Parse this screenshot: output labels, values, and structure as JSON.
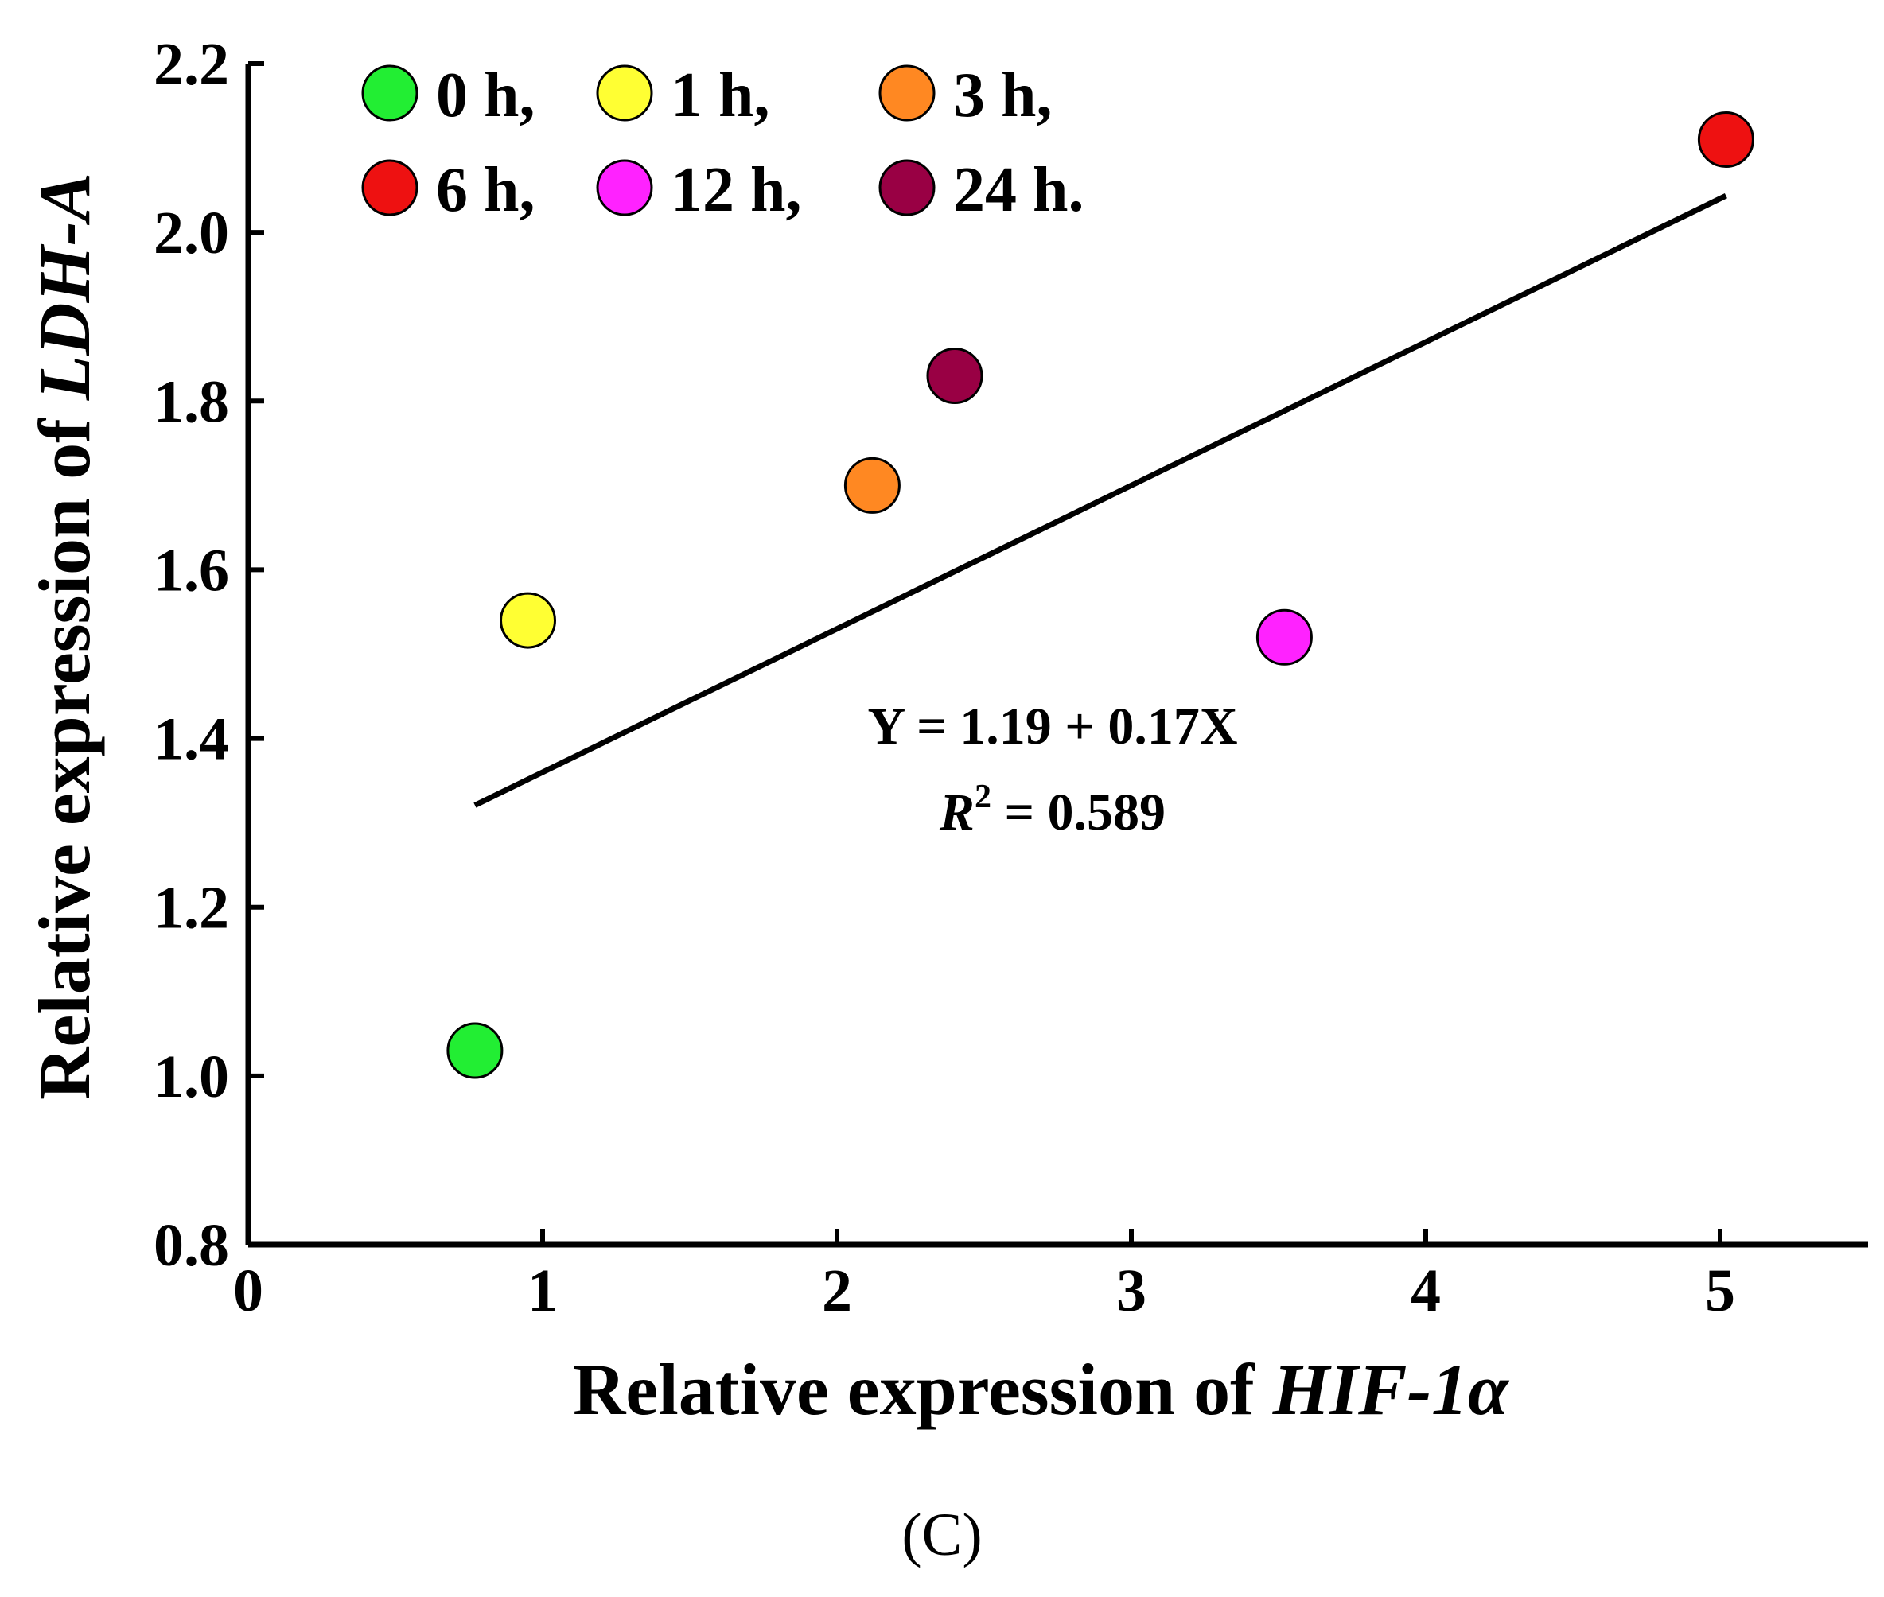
{
  "chart_data": {
    "type": "scatter",
    "title": "",
    "xlabel": "Relative expression of ",
    "xlabel_italic": "HIF-1α",
    "ylabel": "Relative expression of ",
    "ylabel_italic": "LDH-A",
    "xlim": [
      0,
      5.5
    ],
    "ylim": [
      0.8,
      2.2
    ],
    "xticks": [
      "0",
      "1",
      "2",
      "3",
      "4",
      "5"
    ],
    "yticks": [
      "0.8",
      "1.0",
      "1.2",
      "1.4",
      "1.6",
      "1.8",
      "2.0",
      "2.2"
    ],
    "grid": false,
    "legend_position": "top-left",
    "series": [
      {
        "name": "0 h",
        "legend_label": "0 h,",
        "x": 0.77,
        "y": 1.03,
        "color": "#22ee33"
      },
      {
        "name": "1 h",
        "legend_label": "1 h,",
        "x": 0.95,
        "y": 1.54,
        "color": "#ffff33"
      },
      {
        "name": "3 h",
        "legend_label": "3 h,",
        "x": 2.12,
        "y": 1.7,
        "color": "#ff8822"
      },
      {
        "name": "6 h",
        "legend_label": "6 h,",
        "x": 5.02,
        "y": 2.11,
        "color": "#ee1111"
      },
      {
        "name": "12 h",
        "legend_label": "12 h,",
        "x": 3.52,
        "y": 1.52,
        "color": "#ff22ff"
      },
      {
        "name": "24 h",
        "legend_label": "24 h.",
        "x": 2.4,
        "y": 1.83,
        "color": "#990044"
      }
    ],
    "fit": {
      "intercept": 1.19,
      "slope": 0.17,
      "x_range": [
        0.77,
        5.02
      ],
      "equation": "Y = 1.19 + 0.17X",
      "r2_symbol": "R",
      "r2_exponent": "2",
      "r2_value": " = 0.589"
    }
  },
  "panel_label": "(C)"
}
